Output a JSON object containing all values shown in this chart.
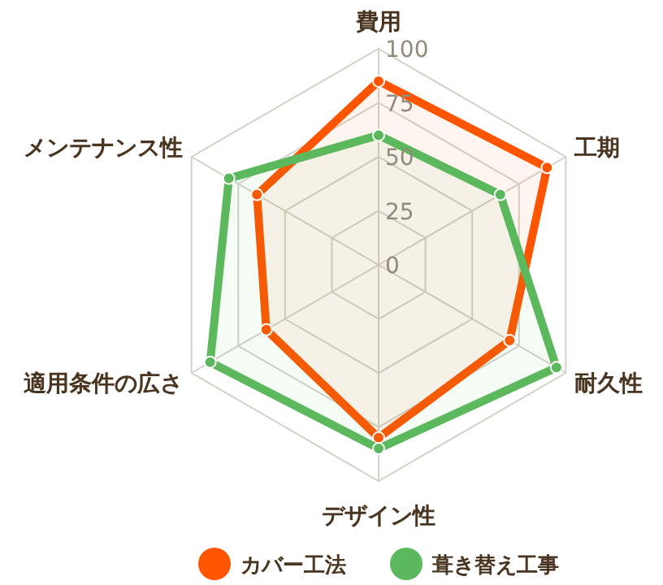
{
  "chart_data": {
    "type": "radar",
    "categories": [
      "費用",
      "工期",
      "耐久性",
      "デザイン性",
      "適用条件の広さ",
      "メンテナンス性"
    ],
    "series": [
      {
        "name": "カバー工法",
        "color": "#ff5500",
        "values": [
          85,
          90,
          70,
          80,
          60,
          65
        ]
      },
      {
        "name": "葺き替え工事",
        "color": "#5cb85c",
        "values": [
          60,
          65,
          95,
          85,
          90,
          80
        ]
      }
    ],
    "ylim": [
      0,
      100
    ],
    "yticks": [
      0,
      25,
      50,
      75,
      100
    ],
    "legend": "bottom",
    "marker": "circle"
  }
}
